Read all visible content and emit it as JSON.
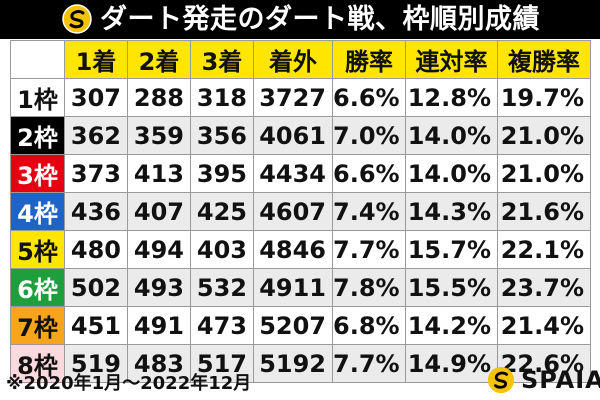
{
  "title": "ダート発走のダート戦、枠順別成績",
  "logo_icon": "spaia-coin-icon",
  "table": {
    "headers": [
      "",
      "1着",
      "2着",
      "3着",
      "着外",
      "勝率",
      "連対率",
      "複勝率"
    ],
    "rows": [
      {
        "frame": "1枠",
        "bg": "#ffffff",
        "fg": "#111111",
        "values": [
          "307",
          "288",
          "318",
          "3727",
          "6.6%",
          "12.8%",
          "19.7%"
        ]
      },
      {
        "frame": "2枠",
        "bg": "#000000",
        "fg": "#ffffff",
        "values": [
          "362",
          "359",
          "356",
          "4061",
          "7.0%",
          "14.0%",
          "21.0%"
        ]
      },
      {
        "frame": "3枠",
        "bg": "#e60012",
        "fg": "#ffffff",
        "values": [
          "373",
          "413",
          "395",
          "4434",
          "6.6%",
          "14.0%",
          "21.0%"
        ]
      },
      {
        "frame": "4枠",
        "bg": "#1e63c6",
        "fg": "#ffffff",
        "values": [
          "436",
          "407",
          "425",
          "4607",
          "7.4%",
          "14.3%",
          "21.6%"
        ]
      },
      {
        "frame": "5枠",
        "bg": "#ffe600",
        "fg": "#111111",
        "values": [
          "480",
          "494",
          "403",
          "4846",
          "7.7%",
          "15.7%",
          "22.1%"
        ]
      },
      {
        "frame": "6枠",
        "bg": "#1e9e3c",
        "fg": "#ffffff",
        "values": [
          "502",
          "493",
          "532",
          "4911",
          "7.8%",
          "15.5%",
          "23.7%"
        ]
      },
      {
        "frame": "7枠",
        "bg": "#f7a51c",
        "fg": "#111111",
        "values": [
          "451",
          "491",
          "473",
          "5207",
          "6.8%",
          "14.2%",
          "21.4%"
        ]
      },
      {
        "frame": "8枠",
        "bg": "#fbd9df",
        "fg": "#111111",
        "values": [
          "519",
          "483",
          "517",
          "5192",
          "7.7%",
          "14.9%",
          "22.6%"
        ]
      }
    ]
  },
  "footnote": "※2020年1月〜2022年12月",
  "brand": {
    "name": "SPAIA",
    "icon": "spaia-coin-icon"
  }
}
